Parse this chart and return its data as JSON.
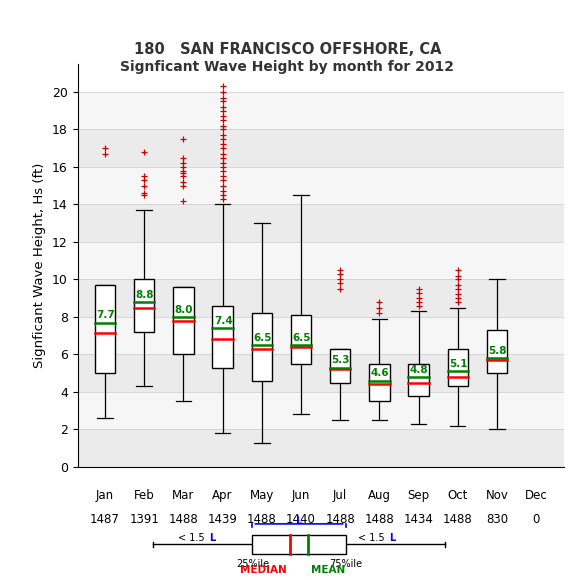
{
  "title1": "180   SAN FRANCISCO OFFSHORE, CA",
  "title2": "Signficant Wave Height by month for 2012",
  "ylabel": "Signficant Wave Height, Hs (ft)",
  "months": [
    "Jan",
    "Feb",
    "Mar",
    "Apr",
    "May",
    "Jun",
    "Jul",
    "Aug",
    "Sep",
    "Oct",
    "Nov",
    "Dec"
  ],
  "counts": [
    "1487",
    "1391",
    "1488",
    "1439",
    "1488",
    "1440",
    "1488",
    "1488",
    "1434",
    "1488",
    "830",
    "0"
  ],
  "ylim": [
    0,
    21.5
  ],
  "yticks": [
    0,
    2,
    4,
    6,
    8,
    10,
    12,
    14,
    16,
    18,
    20
  ],
  "box_data": {
    "Jan": {
      "q1": 5.0,
      "median": 7.15,
      "mean": 7.7,
      "q3": 9.7,
      "whislo": 2.6,
      "whishi": 9.7,
      "fliers_high": [
        16.7,
        17.0
      ],
      "fliers_low": []
    },
    "Feb": {
      "q1": 7.2,
      "median": 8.5,
      "mean": 8.8,
      "q3": 10.0,
      "whislo": 4.3,
      "whishi": 13.7,
      "fliers_high": [
        14.5,
        14.6,
        15.0,
        15.3,
        15.5,
        16.8
      ],
      "fliers_low": []
    },
    "Mar": {
      "q1": 6.0,
      "median": 7.8,
      "mean": 8.0,
      "q3": 9.6,
      "whislo": 3.5,
      "whishi": 9.6,
      "fliers_high": [
        14.2,
        15.0,
        15.2,
        15.5,
        15.7,
        15.8,
        16.0,
        16.2,
        16.5,
        17.5
      ],
      "fliers_low": []
    },
    "Apr": {
      "q1": 5.3,
      "median": 6.8,
      "mean": 7.4,
      "q3": 8.6,
      "whislo": 1.8,
      "whishi": 14.0,
      "fliers_high": [
        14.3,
        14.5,
        14.7,
        15.0,
        15.3,
        15.5,
        15.8,
        16.0,
        16.2,
        16.5,
        16.7,
        17.0,
        17.2,
        17.5,
        17.7,
        18.0,
        18.2,
        18.5,
        18.7,
        19.0,
        19.2,
        19.5,
        19.7,
        20.0,
        20.3
      ],
      "fliers_low": []
    },
    "May": {
      "q1": 4.6,
      "median": 6.3,
      "mean": 6.5,
      "q3": 8.2,
      "whislo": 1.3,
      "whishi": 13.0,
      "fliers_high": [],
      "fliers_low": []
    },
    "Jun": {
      "q1": 5.5,
      "median": 6.4,
      "mean": 6.5,
      "q3": 8.1,
      "whislo": 2.8,
      "whishi": 14.5,
      "fliers_high": [],
      "fliers_low": []
    },
    "Jul": {
      "q1": 4.5,
      "median": 5.2,
      "mean": 5.3,
      "q3": 6.3,
      "whislo": 2.5,
      "whishi": 6.3,
      "fliers_high": [
        9.5,
        9.8,
        10.0,
        10.3,
        10.5
      ],
      "fliers_low": []
    },
    "Aug": {
      "q1": 3.5,
      "median": 4.4,
      "mean": 4.6,
      "q3": 5.5,
      "whislo": 2.5,
      "whishi": 7.9,
      "fliers_high": [
        8.2,
        8.5,
        8.8
      ],
      "fliers_low": []
    },
    "Sep": {
      "q1": 3.8,
      "median": 4.5,
      "mean": 4.8,
      "q3": 5.5,
      "whislo": 2.3,
      "whishi": 8.3,
      "fliers_high": [
        8.6,
        8.8,
        9.0,
        9.3,
        9.5
      ],
      "fliers_low": []
    },
    "Oct": {
      "q1": 4.3,
      "median": 4.8,
      "mean": 5.1,
      "q3": 6.3,
      "whislo": 2.2,
      "whishi": 8.5,
      "fliers_high": [
        8.8,
        9.0,
        9.2,
        9.5,
        9.7,
        10.0,
        10.2,
        10.5
      ],
      "fliers_low": []
    },
    "Nov": {
      "q1": 5.0,
      "median": 5.7,
      "mean": 5.8,
      "q3": 7.3,
      "whislo": 2.0,
      "whishi": 10.0,
      "fliers_high": [],
      "fliers_low": []
    },
    "Dec": {
      "q1": null,
      "median": null,
      "mean": null,
      "q3": null,
      "whislo": null,
      "whishi": null,
      "fliers_high": [],
      "fliers_low": []
    }
  },
  "box_color": "#ffffff",
  "median_color": "#ff0000",
  "mean_color": "#008000",
  "whisker_color": "#000000",
  "flier_color": "#cc0000",
  "title_bg": "#ffffff",
  "plot_bg_light": "#ececec",
  "plot_bg_dark": "#f8f8f8",
  "grid_color": "#cccccc"
}
